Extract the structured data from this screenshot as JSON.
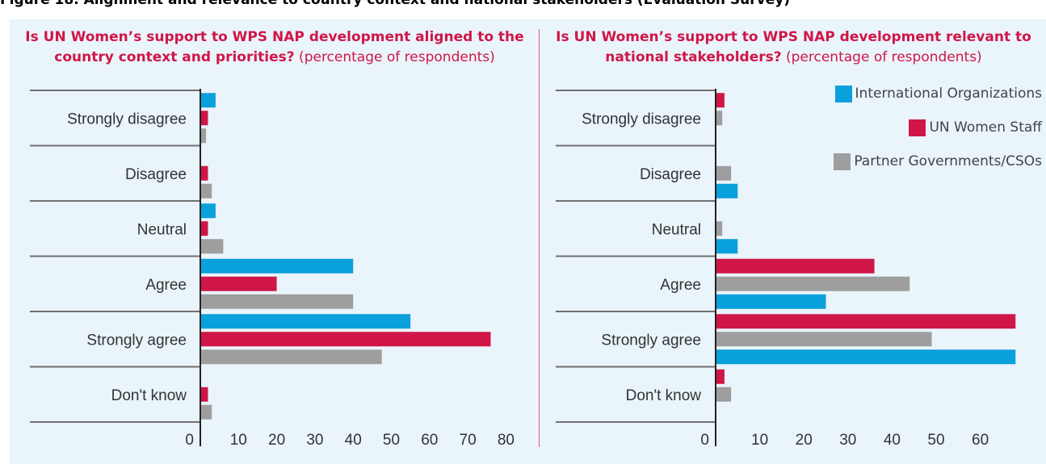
{
  "figure_title": "Figure 18. Alignment and relevance to country context and national stakeholders (Evaluation Survey)",
  "colors": {
    "International Organizations": "#0aa0dc",
    "UN Women Staff": "#d01648",
    "Partner Governments/CSOs": "#9e9e9e"
  },
  "legend": [
    {
      "name": "International Organizations",
      "color_key": "International Organizations"
    },
    {
      "name": "UN Women Staff",
      "color_key": "UN Women Staff"
    },
    {
      "name": "Partner Governments/CSOs",
      "color_key": "Partner Governments/CSOs"
    }
  ],
  "chart_data": [
    {
      "type": "bar",
      "orientation": "horizontal",
      "title_question": "Is UN Women’s support to WPS NAP development aligned to the country context and priorities?",
      "title_unit": " (percentage of respondents)",
      "categories": [
        "Strongly disagree",
        "Disagree",
        "Neutral",
        "Agree",
        "Strongly agree",
        "Don't know"
      ],
      "series": [
        {
          "name": "International Organizations",
          "values": [
            4,
            0,
            4,
            40,
            55,
            0
          ]
        },
        {
          "name": "UN Women Staff",
          "values": [
            2,
            2,
            2,
            20,
            76,
            2
          ]
        },
        {
          "name": "Partner Governments/CSOs",
          "values": [
            1.5,
            3,
            6,
            40,
            47.5,
            3
          ]
        }
      ],
      "xlim": [
        0,
        80
      ],
      "xticks": [
        0,
        10,
        20,
        30,
        40,
        50,
        60,
        70,
        80
      ],
      "grid": false,
      "legend": "none"
    },
    {
      "type": "bar",
      "orientation": "horizontal",
      "title_question": "Is UN Women’s support to WPS NAP development relevant to national stakeholders?",
      "title_unit": " (percentage of respondents)",
      "categories": [
        "Strongly disagree",
        "Disagree",
        "Neutral",
        "Agree",
        "Strongly agree",
        "Don't know"
      ],
      "series": [
        {
          "name": "UN Women Staff",
          "values": [
            2,
            0,
            0,
            36,
            68,
            2
          ]
        },
        {
          "name": "Partner Governments/CSOs",
          "values": [
            1.5,
            3.5,
            1.5,
            44,
            49,
            3.5
          ]
        },
        {
          "name": "International Organizations",
          "values": [
            0,
            5,
            5,
            25,
            68,
            0
          ]
        }
      ],
      "xlim": [
        0,
        68
      ],
      "xticks": [
        0,
        10,
        20,
        30,
        40,
        50,
        60
      ],
      "grid": false,
      "legend": "top-right"
    }
  ]
}
